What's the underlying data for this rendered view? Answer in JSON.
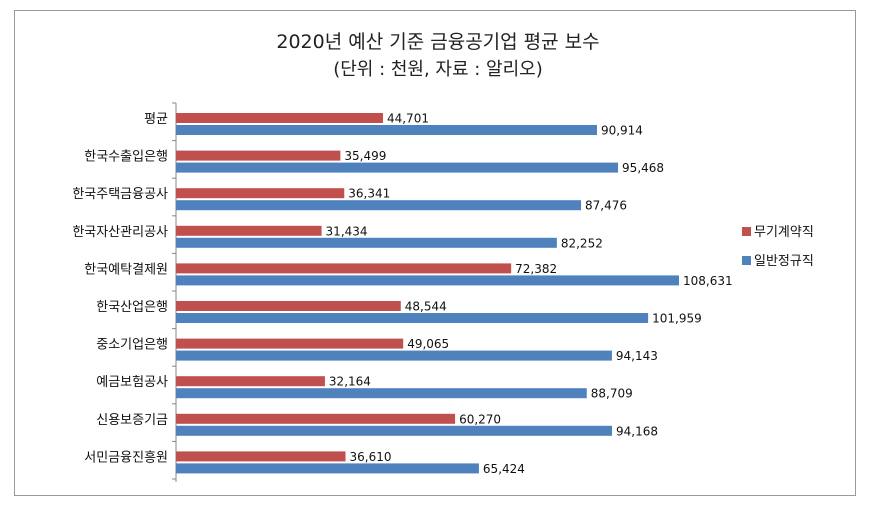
{
  "chart_data": {
    "type": "bar",
    "orientation": "horizontal",
    "title": "2020년 예산 기준 금융공기업 평균 보수",
    "subtitle": "(단위 : 천원, 자료 : 알리오)",
    "categories": [
      "평균",
      "한국수출입은행",
      "한국주택금융공사",
      "한국자산관리공사",
      "한국예탁결제원",
      "한국산업은행",
      "중소기업은행",
      "예금보험공사",
      "신용보증기금",
      "서민금융진흥원"
    ],
    "series": [
      {
        "name": "무기계약직",
        "color": "#c0504d",
        "values": [
          44701,
          35499,
          36341,
          31434,
          72382,
          48544,
          49065,
          32164,
          60270,
          36610
        ]
      },
      {
        "name": "일반정규직",
        "color": "#4f81bd",
        "values": [
          90914,
          95468,
          87476,
          82252,
          108631,
          101959,
          94143,
          88709,
          94168,
          65424
        ]
      }
    ],
    "xlim": [
      0,
      120000
    ],
    "grid": false,
    "legend_position": "right"
  }
}
